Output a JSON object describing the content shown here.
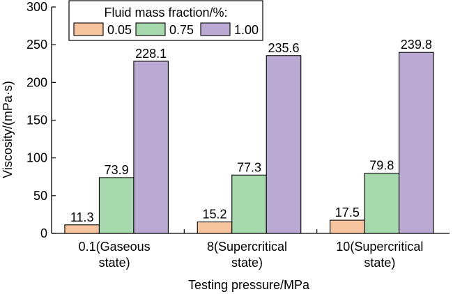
{
  "chart_data": {
    "type": "bar",
    "xlabel": "Testing pressure/MPa",
    "ylabel": "Viscosity/(mPa·s)",
    "ylim": [
      0,
      300
    ],
    "yticks": [
      0,
      50,
      100,
      150,
      200,
      250,
      300
    ],
    "categories": [
      [
        "0.1(Gaseous",
        "state)"
      ],
      [
        "8(Supercritical",
        "state)"
      ],
      [
        "10(Supercritical",
        "state)"
      ]
    ],
    "legend": {
      "title": "Fluid mass fraction/%:",
      "placement": "top-left"
    },
    "series": [
      {
        "name": "0.05",
        "color": "#f6c49e",
        "values": [
          11.3,
          15.2,
          17.5
        ],
        "labels": [
          "11.3",
          "15.2",
          "17.5"
        ]
      },
      {
        "name": "0.75",
        "color": "#a8d8ad",
        "values": [
          73.9,
          77.3,
          79.8
        ],
        "labels": [
          "73.9",
          "77.3",
          "79.8"
        ]
      },
      {
        "name": "1.00",
        "color": "#b9a9d3",
        "values": [
          228.1,
          235.6,
          239.8
        ],
        "labels": [
          "228.1",
          "235.6",
          "239.8"
        ]
      }
    ],
    "grid": false
  }
}
